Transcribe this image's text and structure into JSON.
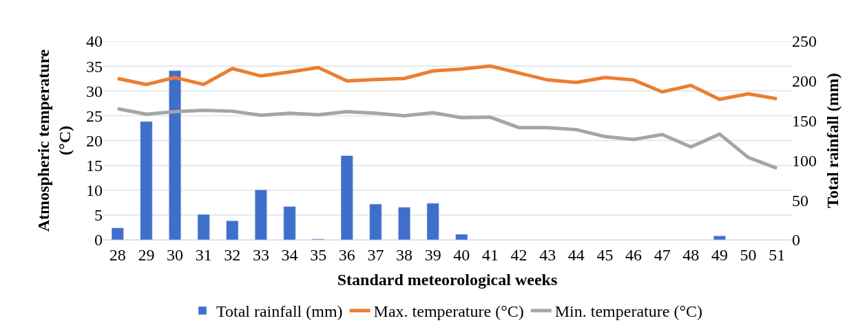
{
  "chart_data": {
    "type": "line",
    "xlabel": "Standard meteorological weeks",
    "ylabel": "Atmospheric temperature (°C)",
    "y2label": "Total rainfall (mm)",
    "categories": [
      "28",
      "29",
      "30",
      "31",
      "32",
      "33",
      "34",
      "35",
      "36",
      "37",
      "38",
      "39",
      "40",
      "41",
      "42",
      "43",
      "44",
      "45",
      "46",
      "47",
      "48",
      "49",
      "50",
      "51"
    ],
    "series": [
      {
        "name": "Total rainfall (mm)",
        "type": "bar",
        "axis": "y2",
        "color": "#3f6fcb",
        "values": [
          15,
          149,
          213,
          32,
          24,
          63,
          42,
          1,
          106,
          45,
          41,
          46,
          7,
          null,
          null,
          null,
          null,
          null,
          null,
          null,
          null,
          5,
          null,
          null
        ]
      },
      {
        "name": "Max. temperature (°C)",
        "color": "#ed7d31",
        "values": [
          32.5,
          31.3,
          32.7,
          31.3,
          34.5,
          33.0,
          33.8,
          34.7,
          32.0,
          32.3,
          32.5,
          34.0,
          34.4,
          35.0,
          33.6,
          32.2,
          31.7,
          32.7,
          32.2,
          29.8,
          31.1,
          28.3,
          29.4,
          28.4
        ]
      },
      {
        "name": "Min. temperature (°C)",
        "color": "#a5a5a5",
        "values": [
          26.4,
          25.3,
          25.8,
          26.1,
          25.9,
          25.1,
          25.5,
          25.2,
          25.8,
          25.5,
          25.0,
          25.6,
          24.6,
          24.7,
          22.6,
          22.6,
          22.2,
          20.8,
          20.2,
          21.2,
          18.7,
          21.3,
          16.6,
          14.4
        ]
      }
    ],
    "ylim": [
      0,
      40
    ],
    "yticks": [
      0,
      5,
      10,
      15,
      20,
      25,
      30,
      35,
      40
    ],
    "y2lim": [
      0,
      250
    ],
    "y2ticks": [
      0,
      50,
      100,
      150,
      200,
      250
    ],
    "grid": "y",
    "legend": "bottom",
    "marker": "none",
    "line_style": "solid"
  }
}
